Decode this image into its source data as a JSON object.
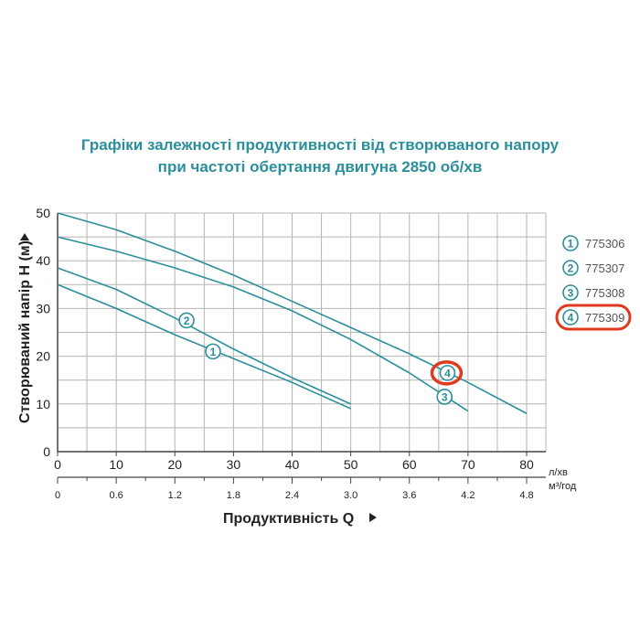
{
  "title_line1": "Графіки залежності продуктивності від створюваного напору",
  "title_line2": "при частоті обертання двигуна 2850 об/хв",
  "colors": {
    "accent": "#2a8f9a",
    "grid": "#b5b5b5",
    "highlight": "#e03a1e",
    "text": "#222222"
  },
  "chart_data": {
    "type": "line",
    "title": "Графіки залежності продуктивності від створюваного напору при частоті обертання двигуна 2850 об/хв",
    "xlabel": "Продуктивність  Q",
    "ylabel": "Створюваний напір H (м)",
    "x_unit_primary": "л/хв",
    "x_unit_secondary": "м³/год",
    "xlim": [
      0,
      83
    ],
    "ylim": [
      0,
      50
    ],
    "x_ticks": [
      "0",
      "10",
      "20",
      "30",
      "40",
      "50",
      "60",
      "70",
      "80"
    ],
    "x_ticks_secondary": [
      "0",
      "0.6",
      "1.2",
      "1.8",
      "2.4",
      "3.0",
      "3.6",
      "4.2",
      "4.8"
    ],
    "y_ticks": [
      "0",
      "10",
      "20",
      "30",
      "40",
      "50"
    ],
    "grid": true,
    "legend_position": "right",
    "series": [
      {
        "name": "775306",
        "marker": "1",
        "x": [
          0,
          10,
          20,
          30,
          40,
          50
        ],
        "y": [
          35,
          30,
          24.5,
          19.5,
          14.5,
          9
        ]
      },
      {
        "name": "775307",
        "marker": "2",
        "x": [
          0,
          10,
          20,
          30,
          40,
          50
        ],
        "y": [
          38.5,
          34,
          28,
          21.5,
          15.5,
          10
        ]
      },
      {
        "name": "775308",
        "marker": "3",
        "x": [
          0,
          10,
          20,
          30,
          40,
          50,
          60,
          70
        ],
        "y": [
          45,
          42,
          38.5,
          34.5,
          29.5,
          23.5,
          16.5,
          8.5
        ]
      },
      {
        "name": "775309",
        "marker": "4",
        "x": [
          0,
          10,
          20,
          30,
          40,
          50,
          60,
          70,
          80
        ],
        "y": [
          50,
          46.5,
          42,
          37,
          31.5,
          26,
          20.5,
          14.5,
          8
        ]
      }
    ],
    "annotations": [
      {
        "marker": "2",
        "x": 22,
        "y": 27.5
      },
      {
        "marker": "1",
        "x": 26.5,
        "y": 21
      },
      {
        "marker": "4",
        "x": 66.5,
        "y": 16.5,
        "highlighted": true
      },
      {
        "marker": "3",
        "x": 66,
        "y": 11.5
      }
    ],
    "legend": [
      {
        "marker": "1",
        "label": "775306"
      },
      {
        "marker": "2",
        "label": "775307"
      },
      {
        "marker": "3",
        "label": "775308"
      },
      {
        "marker": "4",
        "label": "775309",
        "highlighted": true
      }
    ]
  }
}
